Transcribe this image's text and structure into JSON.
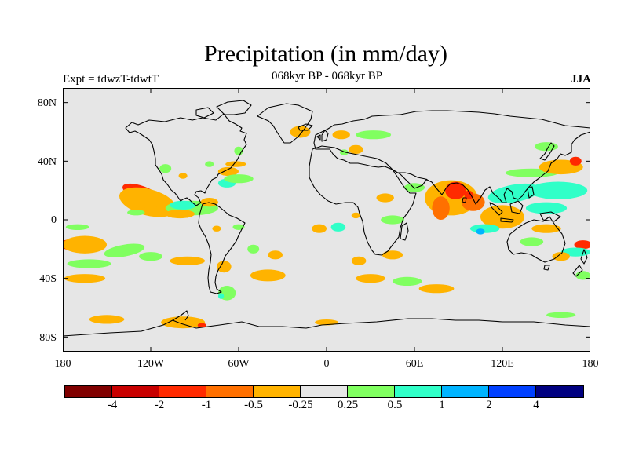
{
  "figure": {
    "title": "Precipitation (in mm/day)",
    "experiment": "Expt = tdwzT-tdwtT",
    "period": "068kyr BP - 068kyr BP",
    "season": "JJA"
  },
  "map": {
    "projection": "cylindrical-equidistant",
    "lon_range": [
      -180,
      180
    ],
    "lat_range": [
      -90,
      90
    ],
    "background_color": "#e6e6e6",
    "coastline_color": "#000000",
    "lat_ticks": [
      {
        "value": 80,
        "label": "80N"
      },
      {
        "value": 40,
        "label": "40N"
      },
      {
        "value": 0,
        "label": "0"
      },
      {
        "value": -40,
        "label": "40S"
      },
      {
        "value": -80,
        "label": "80S"
      }
    ],
    "lon_ticks": [
      {
        "value": -180,
        "label": "180"
      },
      {
        "value": -120,
        "label": "120W"
      },
      {
        "value": -60,
        "label": "60W"
      },
      {
        "value": 0,
        "label": "0"
      },
      {
        "value": 60,
        "label": "60E"
      },
      {
        "value": 120,
        "label": "120E"
      },
      {
        "value": 180,
        "label": "180"
      }
    ]
  },
  "colorbar": {
    "colors": [
      "#800000",
      "#c80000",
      "#ff2a00",
      "#ff7000",
      "#ffb300",
      "#e6e6e6",
      "#80ff60",
      "#30ffc8",
      "#00b4ff",
      "#0040ff",
      "#000080"
    ],
    "labels": [
      "-4",
      "-2",
      "-1",
      "-0.5",
      "-0.25",
      "0.25",
      "0.5",
      "1",
      "2",
      "4"
    ]
  },
  "anomalies": [
    {
      "level": "-1",
      "lon": -126,
      "lat": 18,
      "rx": 14,
      "ry": 5,
      "rot": 20
    },
    {
      "level": "-0.25",
      "lon": -122,
      "lat": 12,
      "rx": 20,
      "ry": 9,
      "rot": 15
    },
    {
      "level": "-0.25",
      "lon": -118,
      "lat": 6,
      "rx": 9,
      "ry": 3
    },
    {
      "level": "0.25",
      "lon": -92,
      "lat": 8,
      "rx": 18,
      "ry": 5
    },
    {
      "level": "0.5",
      "lon": -98,
      "lat": 10,
      "rx": 9,
      "ry": 3
    },
    {
      "level": "-0.25",
      "lon": -100,
      "lat": 4,
      "rx": 10,
      "ry": 3
    },
    {
      "level": "-0.25",
      "lon": -80,
      "lat": 12,
      "rx": 6,
      "ry": 3
    },
    {
      "level": "0.25",
      "lon": -130,
      "lat": 5,
      "rx": 6,
      "ry": 2
    },
    {
      "level": "-0.25",
      "lon": -67,
      "lat": 33,
      "rx": 7,
      "ry": 3
    },
    {
      "level": "0.5",
      "lon": -68,
      "lat": 25,
      "rx": 6,
      "ry": 3
    },
    {
      "level": "-0.25",
      "lon": -62,
      "lat": 38,
      "rx": 7,
      "ry": 2
    },
    {
      "level": "0.25",
      "lon": -60,
      "lat": 28,
      "rx": 10,
      "ry": 3
    },
    {
      "level": "0.25",
      "lon": -80,
      "lat": 38,
      "rx": 3,
      "ry": 2
    },
    {
      "level": "0.25",
      "lon": -110,
      "lat": 35,
      "rx": 4,
      "ry": 3
    },
    {
      "level": "-0.25",
      "lon": -98,
      "lat": 30,
      "rx": 3,
      "ry": 2
    },
    {
      "level": "0.25",
      "lon": -60,
      "lat": 47,
      "rx": 3,
      "ry": 3
    },
    {
      "level": "-0.25",
      "lon": -75,
      "lat": -6,
      "rx": 3,
      "ry": 2
    },
    {
      "level": "0.25",
      "lon": -60,
      "lat": -5,
      "rx": 4,
      "ry": 2
    },
    {
      "level": "-1",
      "lon": -172,
      "lat": -17,
      "rx": 10,
      "ry": 4
    },
    {
      "level": "-0.25",
      "lon": -165,
      "lat": -17,
      "rx": 15,
      "ry": 6
    },
    {
      "level": "0.25",
      "lon": -162,
      "lat": -30,
      "rx": 15,
      "ry": 3
    },
    {
      "level": "0.25",
      "lon": -138,
      "lat": -21,
      "rx": 14,
      "ry": 4,
      "rot": -10
    },
    {
      "level": "0.25",
      "lon": -170,
      "lat": -5,
      "rx": 8,
      "ry": 2
    },
    {
      "level": "0.25",
      "lon": -120,
      "lat": -25,
      "rx": 8,
      "ry": 3
    },
    {
      "level": "-0.25",
      "lon": -165,
      "lat": -40,
      "rx": 14,
      "ry": 3
    },
    {
      "level": "-0.25",
      "lon": -95,
      "lat": -28,
      "rx": 12,
      "ry": 3
    },
    {
      "level": "-0.25",
      "lon": -70,
      "lat": -32,
      "rx": 5,
      "ry": 4
    },
    {
      "level": "-0.25",
      "lon": -40,
      "lat": -38,
      "rx": 12,
      "ry": 4
    },
    {
      "level": "-0.25",
      "lon": -35,
      "lat": -24,
      "rx": 5,
      "ry": 3
    },
    {
      "level": "0.25",
      "lon": -50,
      "lat": -20,
      "rx": 4,
      "ry": 3
    },
    {
      "level": "0.25",
      "lon": -68,
      "lat": -50,
      "rx": 6,
      "ry": 5
    },
    {
      "level": "0.5",
      "lon": -72,
      "lat": -52,
      "rx": 2,
      "ry": 2
    },
    {
      "level": "-0.25",
      "lon": -150,
      "lat": -68,
      "rx": 12,
      "ry": 3
    },
    {
      "level": "-0.25",
      "lon": -98,
      "lat": -70,
      "rx": 15,
      "ry": 4
    },
    {
      "level": "-1",
      "lon": -85,
      "lat": -72,
      "rx": 3,
      "ry": 1.5
    },
    {
      "level": "-0.25",
      "lon": -18,
      "lat": 60,
      "rx": 7,
      "ry": 4
    },
    {
      "level": "0.25",
      "lon": 12,
      "lat": 46,
      "rx": 3,
      "ry": 2
    },
    {
      "level": "-0.25",
      "lon": 10,
      "lat": 58,
      "rx": 6,
      "ry": 3
    },
    {
      "level": "-0.25",
      "lon": -5,
      "lat": -6,
      "rx": 5,
      "ry": 3
    },
    {
      "level": "0.5",
      "lon": 8,
      "lat": -5,
      "rx": 5,
      "ry": 3
    },
    {
      "level": "-0.25",
      "lon": 20,
      "lat": 3,
      "rx": 3,
      "ry": 2
    },
    {
      "level": "0.25",
      "lon": 45,
      "lat": 0,
      "rx": 8,
      "ry": 3
    },
    {
      "level": "-0.25",
      "lon": 22,
      "lat": -28,
      "rx": 5,
      "ry": 3
    },
    {
      "level": "-0.25",
      "lon": 30,
      "lat": -40,
      "rx": 10,
      "ry": 3
    },
    {
      "level": "0.25",
      "lon": 55,
      "lat": -42,
      "rx": 10,
      "ry": 3
    },
    {
      "level": "-0.25",
      "lon": 75,
      "lat": -47,
      "rx": 12,
      "ry": 3
    },
    {
      "level": "-0.25",
      "lon": 45,
      "lat": -24,
      "rx": 7,
      "ry": 3
    },
    {
      "level": "-0.25",
      "lon": 20,
      "lat": 48,
      "rx": 5,
      "ry": 3
    },
    {
      "level": "0.25",
      "lon": 32,
      "lat": 58,
      "rx": 12,
      "ry": 3
    },
    {
      "level": "0.25",
      "lon": 60,
      "lat": 22,
      "rx": 7,
      "ry": 3
    },
    {
      "level": "-0.25",
      "lon": 85,
      "lat": 15,
      "rx": 18,
      "ry": 12
    },
    {
      "level": "-1",
      "lon": 88,
      "lat": 20,
      "rx": 7,
      "ry": 6
    },
    {
      "level": "-0.5",
      "lon": 78,
      "lat": 8,
      "rx": 6,
      "ry": 8
    },
    {
      "level": "-0.5",
      "lon": 100,
      "lat": 12,
      "rx": 8,
      "ry": 6
    },
    {
      "level": "-1",
      "lon": 97,
      "lat": 17,
      "rx": 3,
      "ry": 3
    },
    {
      "level": "0.5",
      "lon": 128,
      "lat": 18,
      "rx": 18,
      "ry": 6,
      "rot": -10
    },
    {
      "level": "0.5",
      "lon": 158,
      "lat": 20,
      "rx": 20,
      "ry": 6
    },
    {
      "level": "0.5",
      "lon": 150,
      "lat": 8,
      "rx": 14,
      "ry": 4
    },
    {
      "level": "0.25",
      "lon": 140,
      "lat": 32,
      "rx": 18,
      "ry": 3
    },
    {
      "level": "-0.25",
      "lon": 160,
      "lat": 36,
      "rx": 15,
      "ry": 5
    },
    {
      "level": "-1",
      "lon": 170,
      "lat": 40,
      "rx": 4,
      "ry": 3
    },
    {
      "level": "-0.25",
      "lon": 120,
      "lat": 2,
      "rx": 15,
      "ry": 8
    },
    {
      "level": "0.5",
      "lon": 108,
      "lat": -6,
      "rx": 10,
      "ry": 3
    },
    {
      "level": "1",
      "lon": 105,
      "lat": -8,
      "rx": 3,
      "ry": 2
    },
    {
      "level": "-0.25",
      "lon": 150,
      "lat": -6,
      "rx": 10,
      "ry": 3
    },
    {
      "level": "0.25",
      "lon": 140,
      "lat": -15,
      "rx": 8,
      "ry": 3
    },
    {
      "level": "-0.25",
      "lon": 40,
      "lat": 15,
      "rx": 6,
      "ry": 3
    },
    {
      "level": "0.25",
      "lon": 150,
      "lat": 50,
      "rx": 8,
      "ry": 3
    },
    {
      "level": "-1",
      "lon": 175,
      "lat": -17,
      "rx": 6,
      "ry": 3
    },
    {
      "level": "0.5",
      "lon": 170,
      "lat": -22,
      "rx": 10,
      "ry": 3
    },
    {
      "level": "-0.25",
      "lon": 160,
      "lat": -25,
      "rx": 6,
      "ry": 3
    },
    {
      "level": "0.25",
      "lon": 175,
      "lat": -38,
      "rx": 5,
      "ry": 3
    },
    {
      "level": "0.25",
      "lon": 160,
      "lat": -65,
      "rx": 10,
      "ry": 2
    },
    {
      "level": "-0.25",
      "lon": 0,
      "lat": -70,
      "rx": 8,
      "ry": 2
    }
  ]
}
